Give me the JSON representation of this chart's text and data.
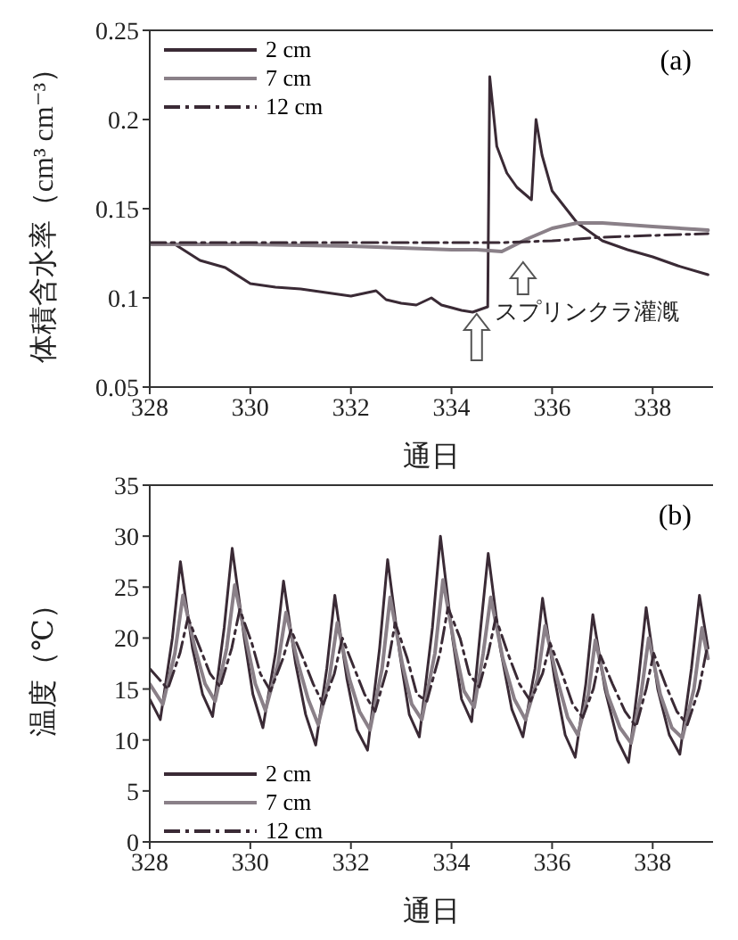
{
  "chart_data": [
    {
      "type": "line",
      "xlabel": "通日",
      "ylabel": "体積含水率（cm³ cm⁻³）",
      "xlim": [
        328,
        339.2
      ],
      "xticks": [
        328,
        330,
        332,
        334,
        336,
        338
      ],
      "ylim": [
        0.05,
        0.25
      ],
      "yticks": [
        0.05,
        0.1,
        0.15,
        0.2,
        0.25
      ],
      "grid": false,
      "legend": "top left",
      "marker": "none",
      "annotations": [
        "(a)",
        {
          "text": "スプリンクラ灌漑",
          "x": 334.5,
          "y": 0.093
        }
      ],
      "series": [
        {
          "name": "2 cm",
          "color": "#3a2a35",
          "line_style": "solid",
          "x": [
            328,
            328.5,
            329,
            329.5,
            330,
            330.5,
            331,
            331.5,
            332,
            332.5,
            332.7,
            333,
            333.3,
            333.6,
            333.8,
            334.2,
            334.42,
            334.72,
            334.76,
            334.9,
            335.1,
            335.3,
            335.59,
            335.68,
            335.8,
            336,
            336.5,
            337,
            337.5,
            338,
            338.5,
            339.1
          ],
          "values": [
            0.13,
            0.13,
            0.121,
            0.117,
            0.108,
            0.106,
            0.105,
            0.103,
            0.101,
            0.104,
            0.099,
            0.097,
            0.096,
            0.1,
            0.096,
            0.093,
            0.092,
            0.095,
            0.224,
            0.185,
            0.17,
            0.162,
            0.155,
            0.2,
            0.18,
            0.16,
            0.142,
            0.132,
            0.127,
            0.123,
            0.118,
            0.113
          ]
        },
        {
          "name": "7 cm",
          "color": "#8a8088",
          "line_style": "solid",
          "x": [
            328,
            330,
            332,
            333,
            334,
            334.5,
            335,
            335.5,
            336,
            336.5,
            337,
            338,
            339.1
          ],
          "values": [
            0.13,
            0.13,
            0.129,
            0.128,
            0.127,
            0.127,
            0.126,
            0.133,
            0.139,
            0.142,
            0.142,
            0.14,
            0.138
          ]
        },
        {
          "name": "12 cm",
          "color": "#3a2a35",
          "line_style": "dashed",
          "x": [
            328,
            330,
            332,
            334,
            335,
            336,
            337,
            338,
            339.1
          ],
          "values": [
            0.131,
            0.131,
            0.131,
            0.131,
            0.131,
            0.132,
            0.134,
            0.135,
            0.136
          ]
        }
      ]
    },
    {
      "type": "line",
      "xlabel": "通日",
      "ylabel": "温度（℃）",
      "xlim": [
        328,
        339.2
      ],
      "xticks": [
        328,
        330,
        332,
        334,
        336,
        338
      ],
      "ylim": [
        0,
        35
      ],
      "yticks": [
        0,
        5,
        10,
        15,
        20,
        25,
        30,
        35
      ],
      "grid": false,
      "legend": "bottom left",
      "marker": "none",
      "annotations": [
        "(b)"
      ],
      "series": [
        {
          "name": "2 cm",
          "color": "#3a2a35",
          "line_style": "solid",
          "x": [
            328,
            328.21,
            328.45,
            328.61,
            328.85,
            329.05,
            329.25,
            329.48,
            329.64,
            329.88,
            330.05,
            330.25,
            330.5,
            330.66,
            330.9,
            331.1,
            331.3,
            331.52,
            331.68,
            331.92,
            332.12,
            332.33,
            332.57,
            332.73,
            332.97,
            333.16,
            333.36,
            333.62,
            333.78,
            334.02,
            334.2,
            334.4,
            334.58,
            334.73,
            334.97,
            335.2,
            335.42,
            335.66,
            335.81,
            336.05,
            336.26,
            336.46,
            336.67,
            336.81,
            337.05,
            337.3,
            337.52,
            337.72,
            337.87,
            338.1,
            338.33,
            338.54,
            338.77,
            338.93,
            339.1
          ],
          "values": [
            14,
            12.0,
            20,
            27.5,
            19,
            14.5,
            12.3,
            21,
            28.8,
            20,
            14.5,
            11.2,
            18.5,
            25.6,
            17.5,
            12.5,
            9.5,
            17,
            24.2,
            16,
            11,
            9.0,
            19,
            27.7,
            18.5,
            12.5,
            10.3,
            21,
            30.0,
            20,
            14,
            11.8,
            21,
            28.3,
            19,
            13,
            10.3,
            17,
            23.9,
            16,
            10.5,
            8.3,
            15.5,
            22.3,
            15,
            10,
            7.8,
            16,
            23.0,
            15,
            10.5,
            8.6,
            17,
            24.2,
            19
          ]
        },
        {
          "name": "7 cm",
          "color": "#8a8088",
          "line_style": "solid",
          "x": [
            328,
            328.26,
            328.5,
            328.66,
            328.9,
            329.1,
            329.3,
            329.53,
            329.69,
            329.93,
            330.1,
            330.3,
            330.55,
            330.71,
            330.95,
            331.15,
            331.35,
            331.57,
            331.73,
            331.97,
            332.17,
            332.38,
            332.62,
            332.78,
            333.02,
            333.21,
            333.41,
            333.67,
            333.83,
            334.07,
            334.25,
            334.45,
            334.63,
            334.78,
            335.02,
            335.25,
            335.47,
            335.71,
            335.86,
            336.1,
            336.31,
            336.51,
            336.72,
            336.86,
            337.1,
            337.35,
            337.57,
            337.77,
            337.92,
            338.15,
            338.38,
            338.59,
            338.82,
            338.98,
            339.1
          ],
          "values": [
            15.5,
            13.5,
            18.5,
            24.2,
            19,
            15.5,
            13.8,
            19,
            25.2,
            19.5,
            15.5,
            12.9,
            17.5,
            22.5,
            17.5,
            14,
            11.5,
            16,
            21.5,
            16,
            12.8,
            11.0,
            17,
            24.0,
            17.5,
            13.5,
            12.0,
            18.5,
            25.7,
            19,
            14.8,
            13.2,
            18.5,
            24.0,
            18,
            14,
            12.0,
            16,
            21.2,
            16,
            12.2,
            10.5,
            14.5,
            19.8,
            14.5,
            11.2,
            9.7,
            14.5,
            20.0,
            14.5,
            11.2,
            10.2,
            15,
            21.0,
            18
          ]
        },
        {
          "name": "12 cm",
          "color": "#3a2a35",
          "line_style": "dashed",
          "x": [
            328,
            328.36,
            328.6,
            328.76,
            329.0,
            329.2,
            329.4,
            329.63,
            329.79,
            330.03,
            330.2,
            330.4,
            330.65,
            330.81,
            331.05,
            331.25,
            331.45,
            331.67,
            331.83,
            332.07,
            332.27,
            332.48,
            332.72,
            332.88,
            333.12,
            333.31,
            333.51,
            333.77,
            333.93,
            334.17,
            334.35,
            334.55,
            334.73,
            334.88,
            335.12,
            335.35,
            335.57,
            335.81,
            335.96,
            336.2,
            336.41,
            336.61,
            336.82,
            336.96,
            337.2,
            337.45,
            337.67,
            337.87,
            338.02,
            338.25,
            338.48,
            338.69,
            338.92,
            339.08
          ],
          "values": [
            17,
            15.0,
            18.5,
            22.0,
            19,
            16.5,
            15.2,
            19,
            22.8,
            19.5,
            16.5,
            14.8,
            18,
            20.8,
            18,
            15.5,
            13.5,
            16.5,
            20.0,
            17,
            14.5,
            12.8,
            17,
            21.5,
            18,
            14.5,
            13.8,
            18.5,
            23.0,
            20,
            16.5,
            15.2,
            18.5,
            22.0,
            18.5,
            15.5,
            13.8,
            16.5,
            19.5,
            16.5,
            13.5,
            12.2,
            15,
            18.3,
            15.5,
            12.8,
            11.3,
            15,
            18.5,
            15.5,
            12.8,
            11.5,
            15,
            19.0
          ]
        }
      ]
    }
  ]
}
